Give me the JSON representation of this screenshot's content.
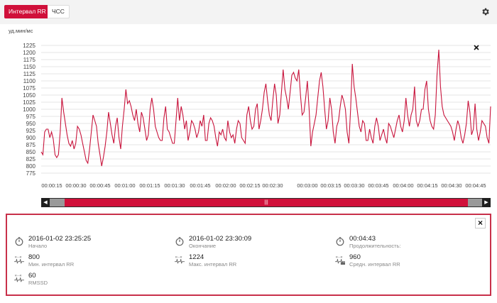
{
  "tabs": [
    {
      "label": "Интервал RR",
      "active": true
    },
    {
      "label": "ЧСС",
      "active": false
    }
  ],
  "settings_icon": "gear-icon",
  "chart": {
    "accent_color": "#c8143c",
    "ylabel": "уд.мин/мс",
    "ylim": [
      775,
      1225
    ],
    "yticks": [
      1225,
      1200,
      1175,
      1150,
      1125,
      1100,
      1075,
      1050,
      1025,
      1000,
      975,
      950,
      925,
      900,
      875,
      850,
      825,
      800,
      775
    ],
    "xticks": [
      "00:00:15",
      "00:00:30",
      "00:00:45",
      "00:01:00",
      "00:01:15",
      "00:01:30",
      "00:01:45",
      "00:02:00",
      "00:02:15",
      "00:02:30",
      "00:03:00",
      "00:03:15",
      "00:03:30",
      "00:03:45",
      "00:04:00",
      "00:04:15",
      "00:04:30",
      "00:04:45"
    ],
    "close_icon": "close-icon"
  },
  "chart_data": {
    "type": "line",
    "ylabel": "уд.мин/мс",
    "ylim": [
      775,
      1225
    ],
    "grid": true,
    "x_label_positions_note": "",
    "series": [
      {
        "values": [
          850,
          840,
          920,
          930,
          930,
          900,
          920,
          895,
          840,
          830,
          840,
          920,
          1040,
          990,
          950,
          910,
          880,
          870,
          890,
          860,
          880,
          940,
          930,
          910,
          880,
          850,
          820,
          810,
          860,
          920,
          980,
          960,
          940,
          880,
          840,
          800,
          830,
          870,
          920,
          990,
          950,
          910,
          880,
          940,
          970,
          900,
          860,
          940,
          1000,
          1070,
          1020,
          1030,
          1010,
          980,
          960,
          1000,
          950,
          920,
          990,
          970,
          930,
          890,
          910,
          1000,
          1040,
          1000,
          940,
          920,
          900,
          890,
          890,
          970,
          1010,
          930,
          920,
          900,
          880,
          880,
          960,
          1040,
          960,
          1010,
          980,
          930,
          960,
          890,
          920,
          960,
          950,
          930,
          900,
          920,
          960,
          940,
          980,
          890,
          890,
          950,
          970,
          960,
          940,
          900,
          870,
          920,
          910,
          930,
          900,
          890,
          960,
          920,
          900,
          910,
          880,
          930,
          960,
          950,
          900,
          890,
          880,
          980,
          1010,
          960,
          930,
          940,
          1000,
          1020,
          930,
          960,
          1000,
          1060,
          1090,
          1030,
          980,
          960,
          1030,
          1090,
          1050,
          950,
          980,
          1060,
          1140,
          1070,
          1040,
          1000,
          1060,
          1120,
          1130,
          1110,
          1100,
          1140,
          1050,
          980,
          990,
          1040,
          1100,
          1000,
          870,
          920,
          950,
          980,
          1040,
          1100,
          1130,
          1080,
          1000,
          930,
          960,
          1040,
          1000,
          920,
          880,
          940,
          960,
          1010,
          1050,
          1030,
          1000,
          920,
          880,
          1000,
          1160,
          1080,
          1040,
          990,
          940,
          920,
          960,
          950,
          890,
          890,
          930,
          900,
          880,
          940,
          970,
          940,
          890,
          910,
          930,
          900,
          880,
          950,
          940,
          920,
          900,
          930,
          960,
          980,
          940,
          920,
          960,
          1040,
          980,
          940,
          980,
          1000,
          1080,
          960,
          940,
          960,
          1000,
          1000,
          1070,
          1100,
          1000,
          960,
          940,
          930,
          980,
          1120,
          1210,
          1080,
          1010,
          980,
          970,
          960,
          950,
          940,
          920,
          890,
          930,
          960,
          940,
          900,
          880,
          910,
          950,
          1030,
          990,
          910,
          930,
          1020,
          930,
          890,
          920,
          960,
          950,
          940,
          900,
          880,
          1010
        ]
      }
    ]
  },
  "scrollbar": {
    "grip": "|||",
    "left_arrow": "◀",
    "right_arrow": "▶"
  },
  "stats": {
    "close_icon": "close-icon",
    "start": {
      "value": "2016-01-02 23:25:25",
      "label": "Начало"
    },
    "end": {
      "value": "2016-01-02 23:30:09",
      "label": "Окончание"
    },
    "duration": {
      "value": "00:04:43",
      "label": "Продолжительность:"
    },
    "min_rr": {
      "value": "800",
      "label": "Мин. интервал RR"
    },
    "max_rr": {
      "value": "1224",
      "label": "Макс. интервал RR"
    },
    "avg_rr": {
      "value": "960",
      "label": "Средн. интервал RR"
    },
    "rmssd": {
      "value": "60",
      "label": "RMSSD"
    }
  }
}
